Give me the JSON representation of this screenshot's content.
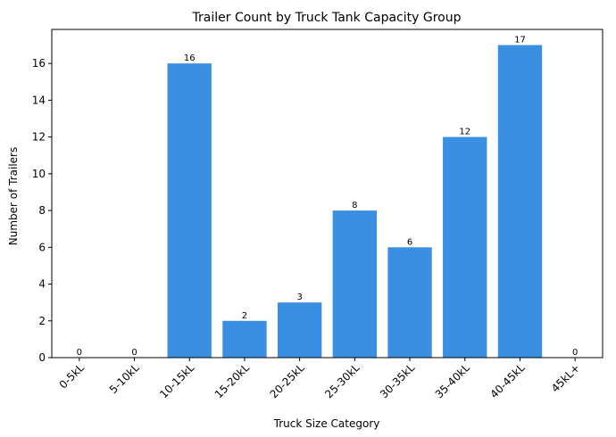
{
  "chart_data": {
    "type": "bar",
    "title": "Trailer Count by Truck Tank Capacity Group",
    "xlabel": "Truck Size Category",
    "ylabel": "Number of Trailers",
    "categories": [
      "0-5kL",
      "5-10kL",
      "10-15kL",
      "15-20kL",
      "20-25kL",
      "25-30kL",
      "30-35kL",
      "35-40kL",
      "40-45kL",
      "45kL+"
    ],
    "values": [
      0,
      0,
      16,
      2,
      3,
      8,
      6,
      12,
      17,
      0
    ],
    "ylim": [
      0,
      17.85
    ],
    "yticks": [
      0,
      2,
      4,
      6,
      8,
      10,
      12,
      14,
      16
    ],
    "grid": false,
    "legend": "none",
    "bar_color": "#3b8fe2",
    "data_labels": true
  }
}
